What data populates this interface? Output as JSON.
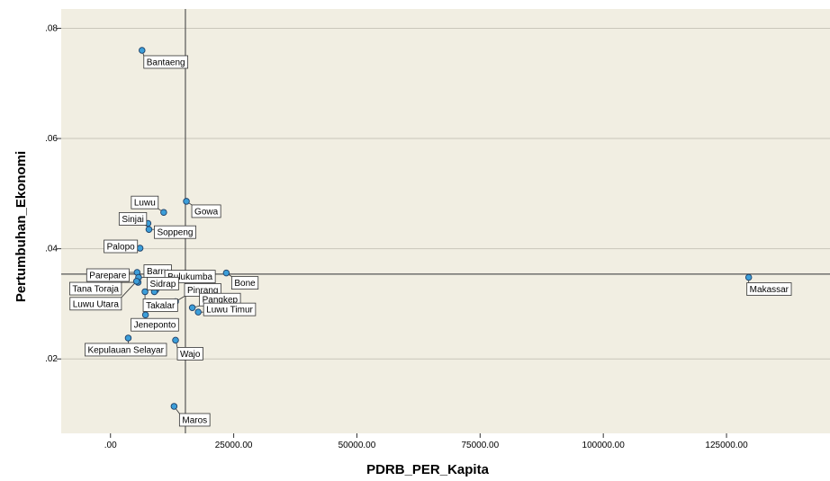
{
  "chart_data": {
    "type": "scatter",
    "title": "",
    "xlabel": "PDRB_PER_Kapita",
    "ylabel": "Pertumbuhan_Ekonomi",
    "xlim": [
      -10000,
      146000
    ],
    "ylim": [
      0.0065,
      0.0835
    ],
    "x_ticks": [
      0,
      25000,
      50000,
      75000,
      100000,
      125000
    ],
    "x_tick_labels": [
      ".00",
      "25000.00",
      "50000.00",
      "75000.00",
      "100000.00",
      "125000.00"
    ],
    "y_ticks": [
      0.02,
      0.04,
      0.06,
      0.08
    ],
    "y_tick_labels": [
      ".02",
      ".04",
      ".06",
      ".08"
    ],
    "grid": "horizontal",
    "reference_lines": {
      "x": 15200,
      "y": 0.0354
    },
    "colors": {
      "plot_bg": "#f1eee2",
      "outer_bg": "#ffffff",
      "point_fill": "#3c9ed9",
      "point_stroke": "#1f3f66",
      "grid": "#c9c6ba",
      "reference": "#555555",
      "label_border": "#333333"
    },
    "points": [
      {
        "name": "Bantaeng",
        "x": 6400,
        "y": 0.076
      },
      {
        "name": "Gowa",
        "x": 15400,
        "y": 0.0486
      },
      {
        "name": "Luwu",
        "x": 10800,
        "y": 0.0466
      },
      {
        "name": "Sinjai",
        "x": 7600,
        "y": 0.0446
      },
      {
        "name": "Soppeng",
        "x": 7800,
        "y": 0.0435
      },
      {
        "name": "Palopo",
        "x": 6000,
        "y": 0.0401
      },
      {
        "name": "Parepare",
        "x": 5400,
        "y": 0.0357
      },
      {
        "name": "Barru",
        "x": 5700,
        "y": 0.0348
      },
      {
        "name": "Bulukumba",
        "x": 9200,
        "y": 0.0325
      },
      {
        "name": "Sidrap",
        "x": 8900,
        "y": 0.0322
      },
      {
        "name": "Tana Toraja",
        "x": 5600,
        "y": 0.0339
      },
      {
        "name": "Luwu Utara",
        "x": 5300,
        "y": 0.0341
      },
      {
        "name": "Takalar",
        "x": 7000,
        "y": 0.0322
      },
      {
        "name": "Pinrang",
        "x": 13200,
        "y": 0.0304
      },
      {
        "name": "Bone",
        "x": 23500,
        "y": 0.0356
      },
      {
        "name": "Pangkep",
        "x": 16600,
        "y": 0.0293
      },
      {
        "name": "Luwu Timur",
        "x": 17800,
        "y": 0.0285
      },
      {
        "name": "Jeneponto",
        "x": 7100,
        "y": 0.028
      },
      {
        "name": "Kepulauan Selayar",
        "x": 3600,
        "y": 0.0238
      },
      {
        "name": "Wajo",
        "x": 13200,
        "y": 0.0234
      },
      {
        "name": "Maros",
        "x": 12900,
        "y": 0.0114
      },
      {
        "name": "Makassar",
        "x": 129500,
        "y": 0.0348
      }
    ]
  }
}
